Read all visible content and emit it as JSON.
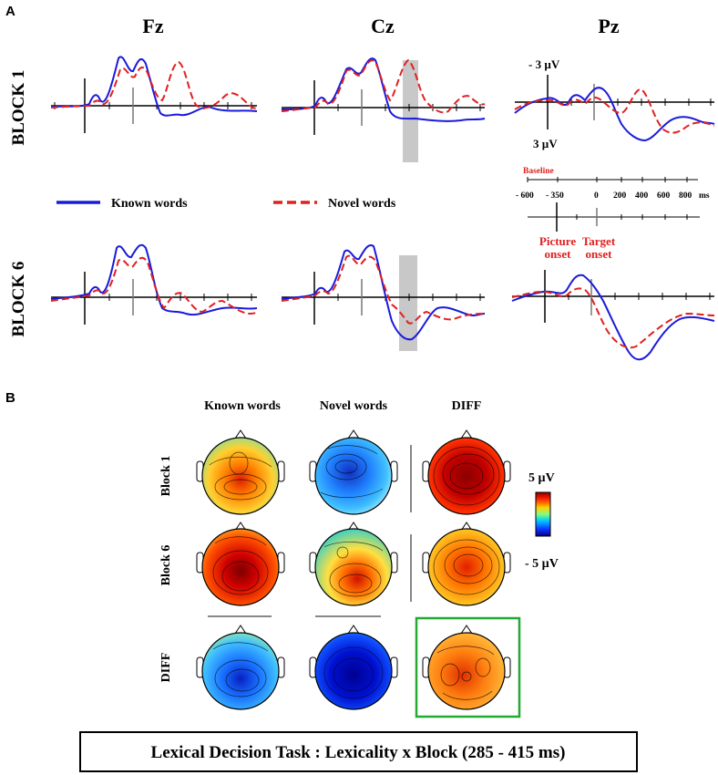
{
  "panel_a": {
    "letter": "A",
    "electrodes": [
      "Fz",
      "Cz",
      "Pz"
    ],
    "rows": [
      "BLOCK 1",
      "BLOCK 6"
    ],
    "legend": {
      "known": "Known words",
      "novel": "Novel words",
      "known_color": "#1a1adb",
      "novel_color": "#e02020"
    },
    "scale": {
      "top": "- 3 µV",
      "bottom": "3 µV"
    },
    "timeline": {
      "baseline_label": "Baseline",
      "ticks": [
        "- 600",
        "- 350",
        "0",
        "200",
        "400",
        "600",
        "800",
        "ms"
      ],
      "picture_onset": [
        "Picture",
        "onset"
      ],
      "target_onset": [
        "Target",
        "onset"
      ]
    }
  },
  "panel_b": {
    "letter": "B",
    "columns": [
      "Known words",
      "Novel words",
      "DIFF"
    ],
    "rows": [
      "Block 1",
      "Block 6",
      "DIFF"
    ],
    "colorbar": {
      "max": "5 µV",
      "min": "- 5 µV"
    }
  },
  "caption": "Lexical Decision Task : Lexicality x Block (285 - 415 ms)"
}
